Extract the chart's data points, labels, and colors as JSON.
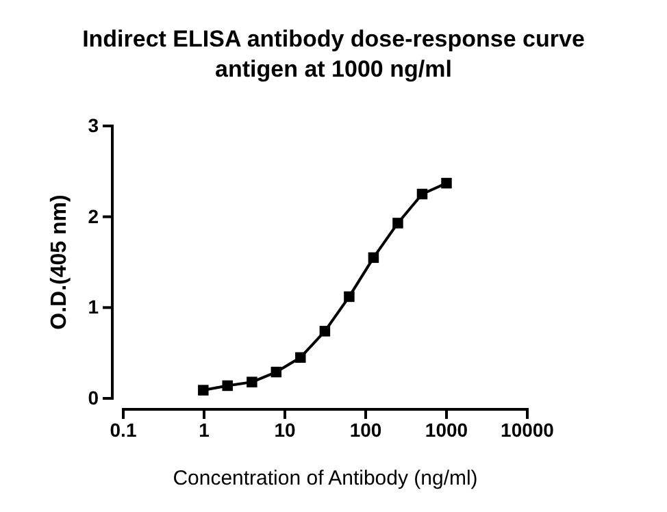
{
  "chart_data": {
    "type": "line",
    "title": "Indirect ELISA antibody dose-response curve\nantigen at 1000 ng/ml",
    "xlabel": "Concentration of Antibody (ng/ml)",
    "ylabel": "O.D.(405 nm)",
    "log": "x",
    "x": [
      0.977,
      1.95,
      3.91,
      7.81,
      15.6,
      31.25,
      62.5,
      125,
      250,
      500,
      1000
    ],
    "series": [
      {
        "color": "#000000",
        "values": [
          0.09,
          0.14,
          0.18,
          0.29,
          0.45,
          0.74,
          1.12,
          1.55,
          1.93,
          2.25,
          2.37
        ]
      }
    ],
    "xlim": [
      0.1,
      10000
    ],
    "xticks": [
      {
        "value": 0.1,
        "label": "0.1"
      },
      1,
      10,
      100,
      1000,
      10000
    ],
    "ylim": [
      0,
      3
    ],
    "yticks": [
      0,
      1,
      2,
      3
    ],
    "marker": "square",
    "line_style": "solid",
    "grid": false
  }
}
